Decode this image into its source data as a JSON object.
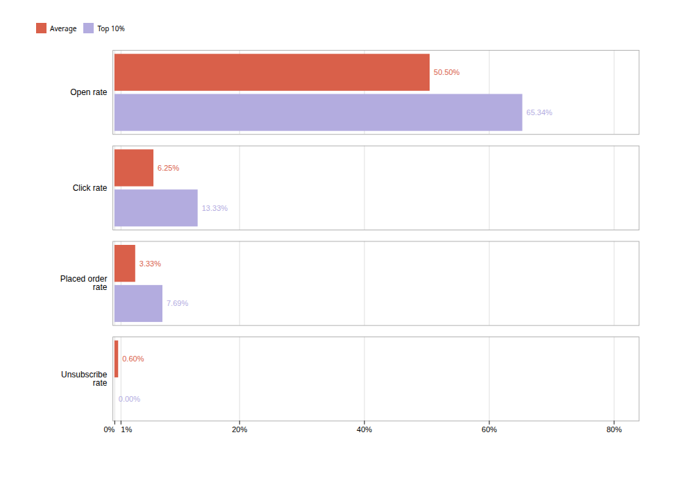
{
  "chart_data": {
    "type": "bar",
    "orientation": "horizontal",
    "categories": [
      "Open rate",
      "Click rate",
      "Placed order\nrate",
      "Unsubscribe\nrate"
    ],
    "series": [
      {
        "name": "Average",
        "color": "#d9604a",
        "values": [
          50.5,
          6.25,
          3.33,
          0.6
        ],
        "value_labels": [
          "50.50%",
          "6.25%",
          "3.33%",
          "0.60%"
        ]
      },
      {
        "name": "Top 10%",
        "color": "#b3acdf",
        "values": [
          65.34,
          13.33,
          7.69,
          0.0
        ],
        "value_labels": [
          "65.34%",
          "13.33%",
          "7.69%",
          "0.00%"
        ]
      }
    ],
    "xlim": [
      -0.3,
      84
    ],
    "xticks": [
      {
        "value": 0,
        "label": "0%"
      },
      {
        "value": 1,
        "label": "1%"
      },
      {
        "value": 20,
        "label": "20%"
      },
      {
        "value": 40,
        "label": "40%"
      },
      {
        "value": 60,
        "label": "60%"
      },
      {
        "value": 80,
        "label": "80%"
      }
    ],
    "grid": true,
    "legend": "top",
    "data_labels": true
  }
}
